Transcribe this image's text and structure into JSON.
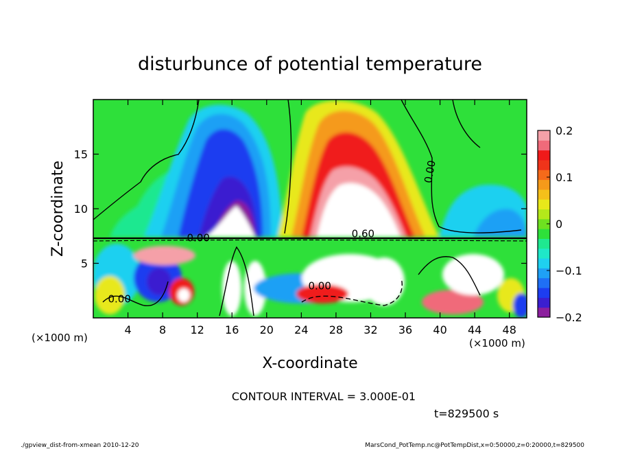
{
  "chart_data": {
    "type": "heatmap",
    "title": "disturbunce of potential temperature",
    "xlabel": "X-coordinate",
    "ylabel": "Z-coordinate",
    "x_unit_left": "(×1000 m)",
    "x_unit_right": "(×1000 m)",
    "xlim": [
      0,
      50
    ],
    "ylim": [
      0,
      20
    ],
    "x_ticks": [
      4,
      8,
      12,
      16,
      20,
      24,
      28,
      32,
      36,
      40,
      44,
      48
    ],
    "y_ticks": [
      5,
      10,
      15
    ],
    "colorbar": {
      "vmin": -0.2,
      "vmax": 0.2,
      "ticks": [
        {
          "value": 0.2,
          "label": "0.2"
        },
        {
          "value": 0.1,
          "label": "0.1"
        },
        {
          "value": 0.0,
          "label": "0"
        },
        {
          "value": -0.1,
          "label": "−0.1"
        },
        {
          "value": -0.2,
          "label": "−0.2"
        }
      ],
      "colors": [
        "#8c1f9e",
        "#3b1fd0",
        "#1d3df0",
        "#1f6ff5",
        "#1fa0f5",
        "#1fd0f0",
        "#1fe8c8",
        "#1fe890",
        "#2ee03a",
        "#6ee020",
        "#b4e81a",
        "#e8e81a",
        "#f5c01a",
        "#f59a1a",
        "#f56a1a",
        "#f0341a",
        "#f01a1a",
        "#f06a7a",
        "#f5a0a8"
      ]
    },
    "contour_labels": [
      {
        "text": "0.00",
        "x": 1.7,
        "y": 1.4
      },
      {
        "text": "0.00",
        "x": 39.0,
        "y": 12.3
      },
      {
        "text": "0.00",
        "x": 24.8,
        "y": 2.6
      },
      {
        "text": "0.00",
        "x": 10.8,
        "y": 7.0
      },
      {
        "text": "0.60",
        "x": 29.8,
        "y": 7.4
      }
    ],
    "contour_interval_text": "CONTOUR INTERVAL = 3.000E-01",
    "time_text": "t=829500 s",
    "footer_left": "./gpview_dist-from-xmean  2010-12-20",
    "footer_right": "MarsCond_PotTemp.nc@PotTempDist,x=0:50000,z=0:20000,t=829500"
  }
}
